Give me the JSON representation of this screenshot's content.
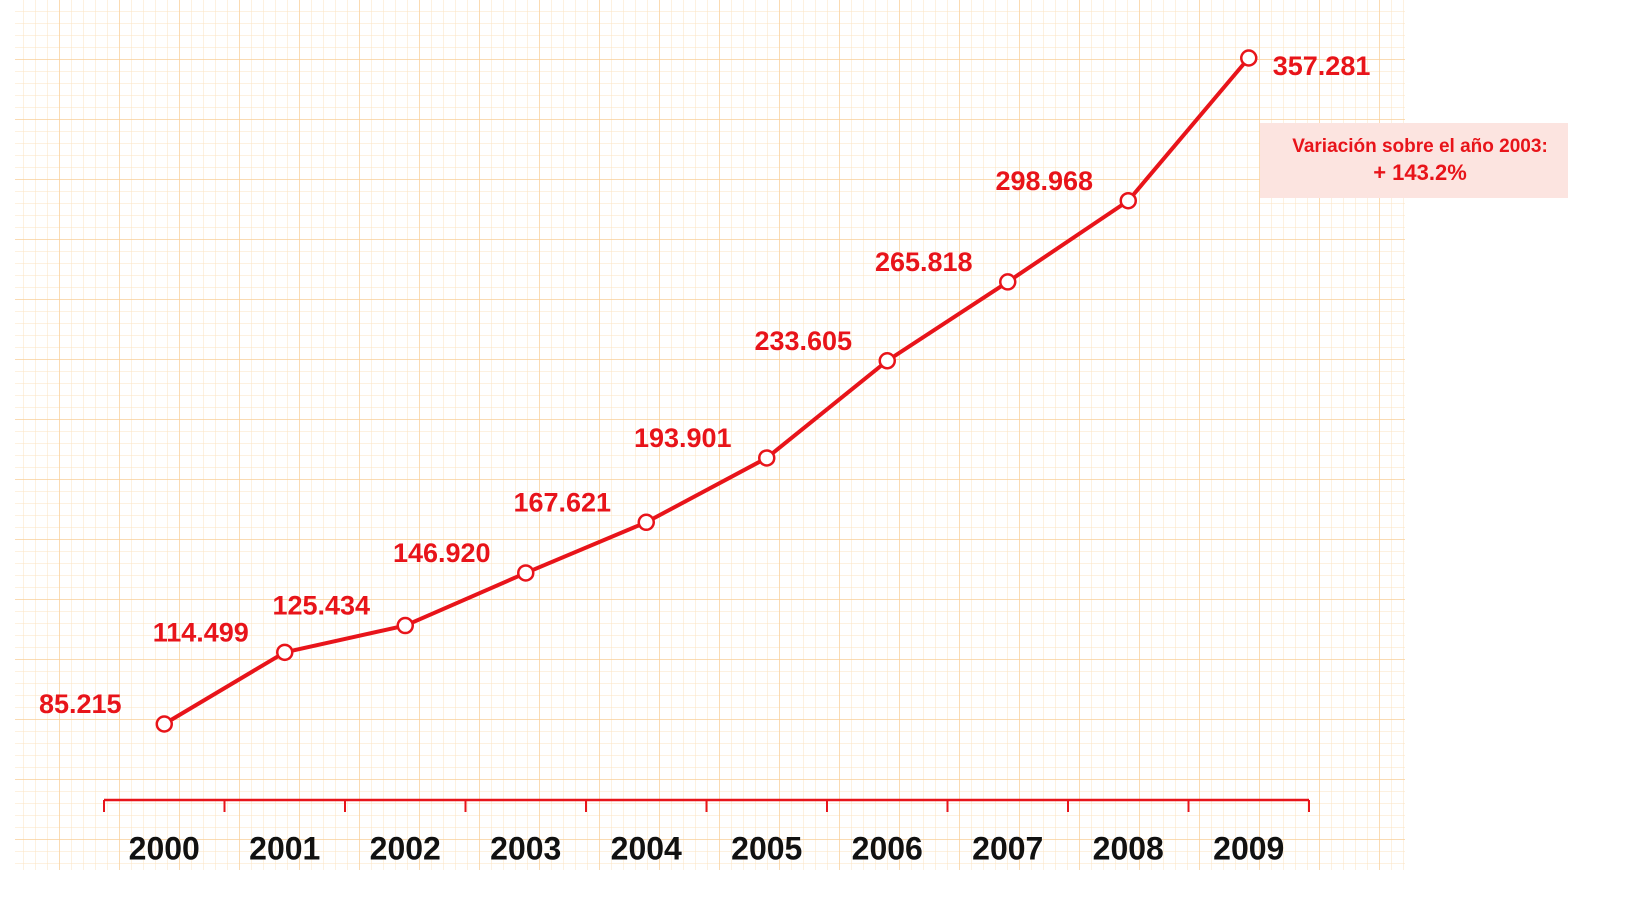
{
  "chart_data": {
    "type": "line",
    "categories": [
      "2000",
      "2001",
      "2002",
      "2003",
      "2004",
      "2005",
      "2006",
      "2007",
      "2008",
      "2009"
    ],
    "series": [
      {
        "color": "#e8141a",
        "values": [
          85215,
          114499,
          125434,
          146920,
          167621,
          193901,
          233605,
          265818,
          298968,
          357281
        ],
        "value_labels": [
          "85.215",
          "114.499",
          "125.434",
          "146.920",
          "167.621",
          "193.901",
          "233.605",
          "265.818",
          "298.968",
          "357.281"
        ]
      }
    ],
    "annotation": [
      "Variación sobre el año 2003:",
      "+ 143.2%"
    ]
  }
}
